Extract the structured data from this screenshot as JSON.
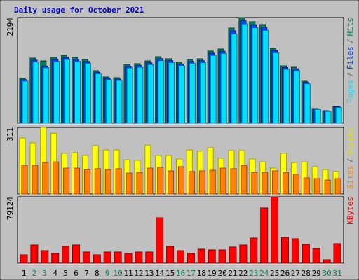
{
  "chart_data": [
    {
      "type": "bar",
      "title": "Daily usage for October 2021",
      "legend_separator": "/",
      "ylim": [
        0,
        2194
      ],
      "yticks": [
        2194
      ],
      "series": [
        {
          "name": "Hits",
          "color": "#00805c",
          "values": [
            930,
            1351,
            1293,
            1366,
            1409,
            1366,
            1322,
            1090,
            959,
            944,
            1220,
            1235,
            1293,
            1380,
            1337,
            1264,
            1322,
            1337,
            1497,
            1540,
            1976,
            2194,
            2107,
            2049,
            1555,
            1191,
            1162,
            872,
            305,
            262,
            349
          ]
        },
        {
          "name": "Files",
          "color": "#0040ff",
          "values": [
            902,
            1310,
            1180,
            1325,
            1367,
            1325,
            1282,
            1057,
            930,
            916,
            1183,
            1198,
            1254,
            1339,
            1297,
            1226,
            1282,
            1297,
            1452,
            1494,
            1917,
            2128,
            2044,
            1988,
            1508,
            1155,
            1127,
            846,
            296,
            254,
            339
          ]
        },
        {
          "name": "Pages",
          "color": "#00e0ff",
          "values": [
            874,
            1270,
            1150,
            1284,
            1324,
            1284,
            1243,
            1025,
            901,
            887,
            1147,
            1161,
            1215,
            1297,
            1257,
            1188,
            1243,
            1257,
            1407,
            1448,
            1857,
            2062,
            1981,
            1926,
            1462,
            1120,
            1092,
            820,
            287,
            246,
            328
          ]
        }
      ]
    },
    {
      "type": "bar",
      "ylim": [
        0,
        311
      ],
      "yticks": [
        311
      ],
      "legend_separator": "/",
      "series": [
        {
          "name": "Visits",
          "color": "#ffff00",
          "values": [
            262,
            239,
            311,
            284,
            190,
            193,
            180,
            226,
            206,
            206,
            160,
            157,
            229,
            180,
            180,
            164,
            206,
            200,
            216,
            167,
            203,
            203,
            164,
            150,
            121,
            190,
            147,
            150,
            128,
            114,
            105
          ]
        },
        {
          "name": "Sites",
          "color": "#ff8000",
          "values": [
            134,
            134,
            147,
            150,
            121,
            121,
            114,
            118,
            114,
            118,
            98,
            101,
            121,
            124,
            108,
            128,
            105,
            108,
            111,
            121,
            118,
            134,
            101,
            101,
            108,
            101,
            92,
            75,
            72,
            65,
            72
          ]
        }
      ]
    },
    {
      "type": "bar",
      "ylim": [
        0,
        79124
      ],
      "yticks": [
        79124
      ],
      "categories": [
        "1",
        "2",
        "3",
        "4",
        "5",
        "6",
        "7",
        "8",
        "9",
        "10",
        "11",
        "12",
        "13",
        "14",
        "15",
        "16",
        "17",
        "18",
        "19",
        "20",
        "21",
        "22",
        "23",
        "24",
        "25",
        "26",
        "27",
        "28",
        "29",
        "30",
        "31"
      ],
      "category_colors": [
        "#000000",
        "#00805c",
        "#00805c",
        "#000000",
        "#000000",
        "#000000",
        "#000000",
        "#000000",
        "#00805c",
        "#00805c",
        "#000000",
        "#000000",
        "#000000",
        "#000000",
        "#000000",
        "#00805c",
        "#00805c",
        "#000000",
        "#000000",
        "#000000",
        "#000000",
        "#000000",
        "#00805c",
        "#00805c",
        "#000000",
        "#000000",
        "#000000",
        "#000000",
        "#000000",
        "#00805c",
        "#00805c"
      ],
      "series": [
        {
          "name": "KBytes",
          "color": "#ff0000",
          "values": [
            9996,
            21658,
            14994,
            11662,
            19992,
            21658,
            13328,
            9996,
            13328,
            13328,
            11662,
            13328,
            13328,
            54145,
            19992,
            14994,
            11662,
            16660,
            15827,
            15827,
            19159,
            21658,
            29988,
            65807,
            79124,
            30821,
            29155,
            22491,
            17493,
            4165,
            23324
          ]
        }
      ]
    }
  ]
}
